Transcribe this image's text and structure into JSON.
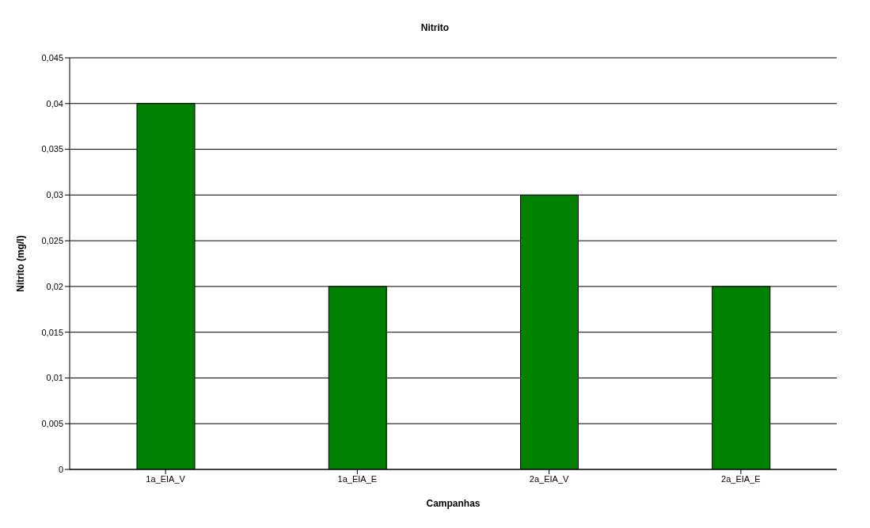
{
  "chart_data": {
    "type": "bar",
    "title": "Nitrito",
    "xlabel": "Campanhas",
    "ylabel": "Nitrito (mg/l)",
    "categories": [
      "1a_EIA_V",
      "1a_EIA_E",
      "2a_EIA_V",
      "2a_EIA_E"
    ],
    "values": [
      0.04,
      0.02,
      0.03,
      0.02
    ],
    "color": "#008000",
    "ylim": [
      0,
      0.045
    ],
    "yticks": [
      {
        "value": 0,
        "label": "0"
      },
      {
        "value": 0.005,
        "label": "0,005"
      },
      {
        "value": 0.01,
        "label": "0,01"
      },
      {
        "value": 0.015,
        "label": "0,015"
      },
      {
        "value": 0.02,
        "label": "0,02"
      },
      {
        "value": 0.025,
        "label": "0,025"
      },
      {
        "value": 0.03,
        "label": "0,03"
      },
      {
        "value": 0.035,
        "label": "0,035"
      },
      {
        "value": 0.04,
        "label": "0,04"
      },
      {
        "value": 0.045,
        "label": "0,045"
      }
    ],
    "grid": "y",
    "legend": false
  }
}
